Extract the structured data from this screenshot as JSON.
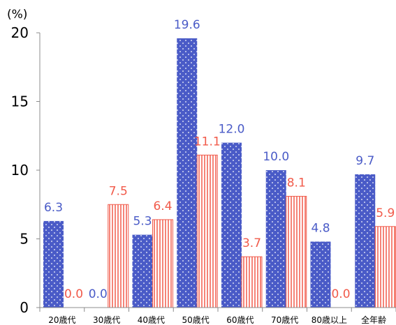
{
  "chart_data": {
    "type": "bar",
    "unit_label": "(%)",
    "categories": [
      "20歳代",
      "30歳代",
      "40歳代",
      "50歳代",
      "60歳代",
      "70歳代",
      "80歳以上",
      "全年齢"
    ],
    "series": [
      {
        "values": [
          6.3,
          0.0,
          5.3,
          19.6,
          12.0,
          10.0,
          4.8,
          9.7
        ],
        "color": "#4a5bc7",
        "pattern": "dots"
      },
      {
        "values": [
          0.0,
          7.5,
          6.4,
          11.1,
          3.7,
          8.1,
          0.0,
          5.9
        ],
        "color": "#f15a4a",
        "pattern": "vertical-stripes"
      }
    ],
    "value_labels": [
      [
        "6.3",
        "0.0",
        "5.3",
        "19.6",
        "12.0",
        "10.0",
        "4.8",
        "9.7"
      ],
      [
        "0.0",
        "7.5",
        "6.4",
        "11.1",
        "3.7",
        "8.1",
        "0.0",
        "5.9"
      ]
    ],
    "ylim": [
      0,
      20
    ],
    "yticks": [
      "0",
      "5",
      "10",
      "15",
      "20"
    ],
    "grid": false,
    "legend": "none"
  }
}
